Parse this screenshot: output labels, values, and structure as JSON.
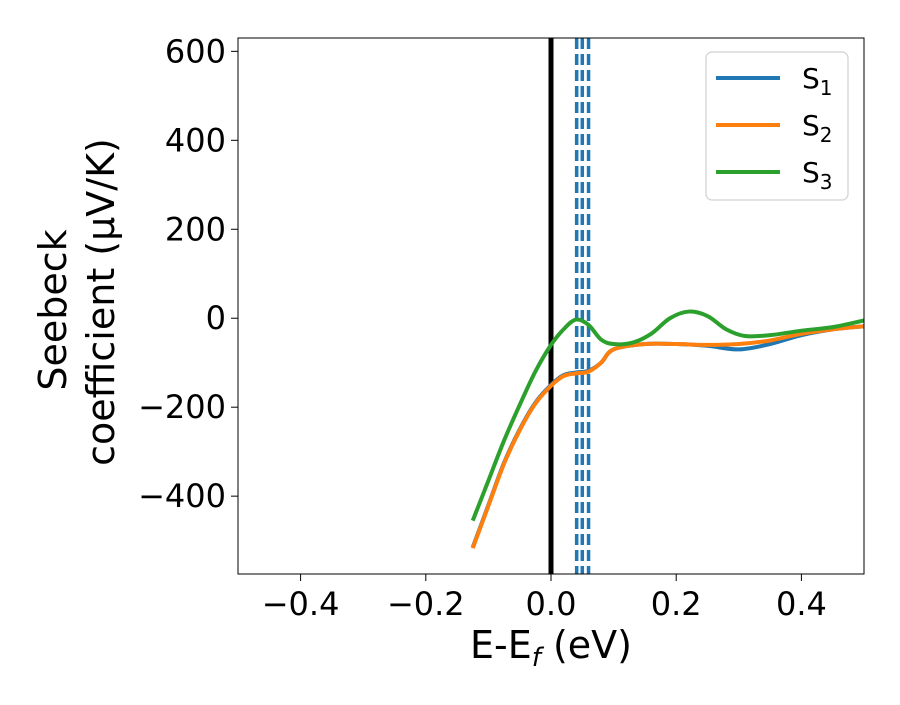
{
  "chart_data": {
    "type": "line",
    "xlabel": "E-E",
    "xlabel_subscript": "f",
    "xlabel_unit": " (eV)",
    "ylabel_line1": "Seebeck",
    "ylabel_line2": "coefficient  (μV/K)",
    "xlim": [
      -0.5,
      0.5
    ],
    "ylim": [
      -575,
      630
    ],
    "xticks": [
      {
        "value": -0.4,
        "label": "−0.4"
      },
      {
        "value": -0.2,
        "label": "−0.2"
      },
      {
        "value": 0.0,
        "label": "0.0"
      },
      {
        "value": 0.2,
        "label": "0.2"
      },
      {
        "value": 0.4,
        "label": "0.4"
      }
    ],
    "yticks": [
      {
        "value": 600,
        "label": "600"
      },
      {
        "value": 400,
        "label": "400"
      },
      {
        "value": 200,
        "label": "200"
      },
      {
        "value": 0,
        "label": "0"
      },
      {
        "value": -200,
        "label": "−200"
      },
      {
        "value": -400,
        "label": "−400"
      }
    ],
    "grid": false,
    "legend_position": "top-right",
    "series": [
      {
        "name": "S",
        "subscript": "1",
        "color": "#1f77b4",
        "x": [
          -0.125,
          -0.1,
          -0.075,
          -0.05,
          -0.025,
          0.0,
          0.02,
          0.04,
          0.06,
          0.08,
          0.1,
          0.15,
          0.2,
          0.25,
          0.3,
          0.35,
          0.4,
          0.45,
          0.5
        ],
        "y": [
          -515,
          -420,
          -325,
          -250,
          -190,
          -150,
          -128,
          -122,
          -118,
          -100,
          -70,
          -58,
          -58,
          -62,
          -70,
          -58,
          -38,
          -25,
          -18
        ]
      },
      {
        "name": "S",
        "subscript": "2",
        "color": "#ff7f0e",
        "x": [
          -0.125,
          -0.1,
          -0.075,
          -0.05,
          -0.025,
          0.0,
          0.02,
          0.04,
          0.06,
          0.08,
          0.1,
          0.15,
          0.2,
          0.25,
          0.3,
          0.35,
          0.4,
          0.45,
          0.5
        ],
        "y": [
          -517,
          -422,
          -327,
          -252,
          -192,
          -152,
          -130,
          -124,
          -120,
          -100,
          -70,
          -58,
          -58,
          -60,
          -58,
          -50,
          -35,
          -25,
          -18
        ]
      },
      {
        "name": "S",
        "subscript": "3",
        "color": "#2ca02c",
        "x": [
          -0.125,
          -0.1,
          -0.075,
          -0.05,
          -0.025,
          0.0,
          0.02,
          0.04,
          0.06,
          0.08,
          0.1,
          0.13,
          0.16,
          0.19,
          0.22,
          0.25,
          0.28,
          0.31,
          0.35,
          0.4,
          0.45,
          0.5
        ],
        "y": [
          -455,
          -365,
          -275,
          -195,
          -120,
          -60,
          -25,
          -3,
          -15,
          -48,
          -58,
          -55,
          -35,
          0,
          15,
          5,
          -25,
          -40,
          -38,
          -28,
          -20,
          -5
        ]
      }
    ],
    "vertical_lines": [
      {
        "x": 0.0,
        "color": "#000000",
        "style": "solid"
      },
      {
        "x": 0.041,
        "color": "#1f77b4",
        "style": "dashed"
      },
      {
        "x": 0.05,
        "color": "#1f77b4",
        "style": "dashed"
      },
      {
        "x": 0.06,
        "color": "#1f77b4",
        "style": "dashed"
      }
    ]
  }
}
